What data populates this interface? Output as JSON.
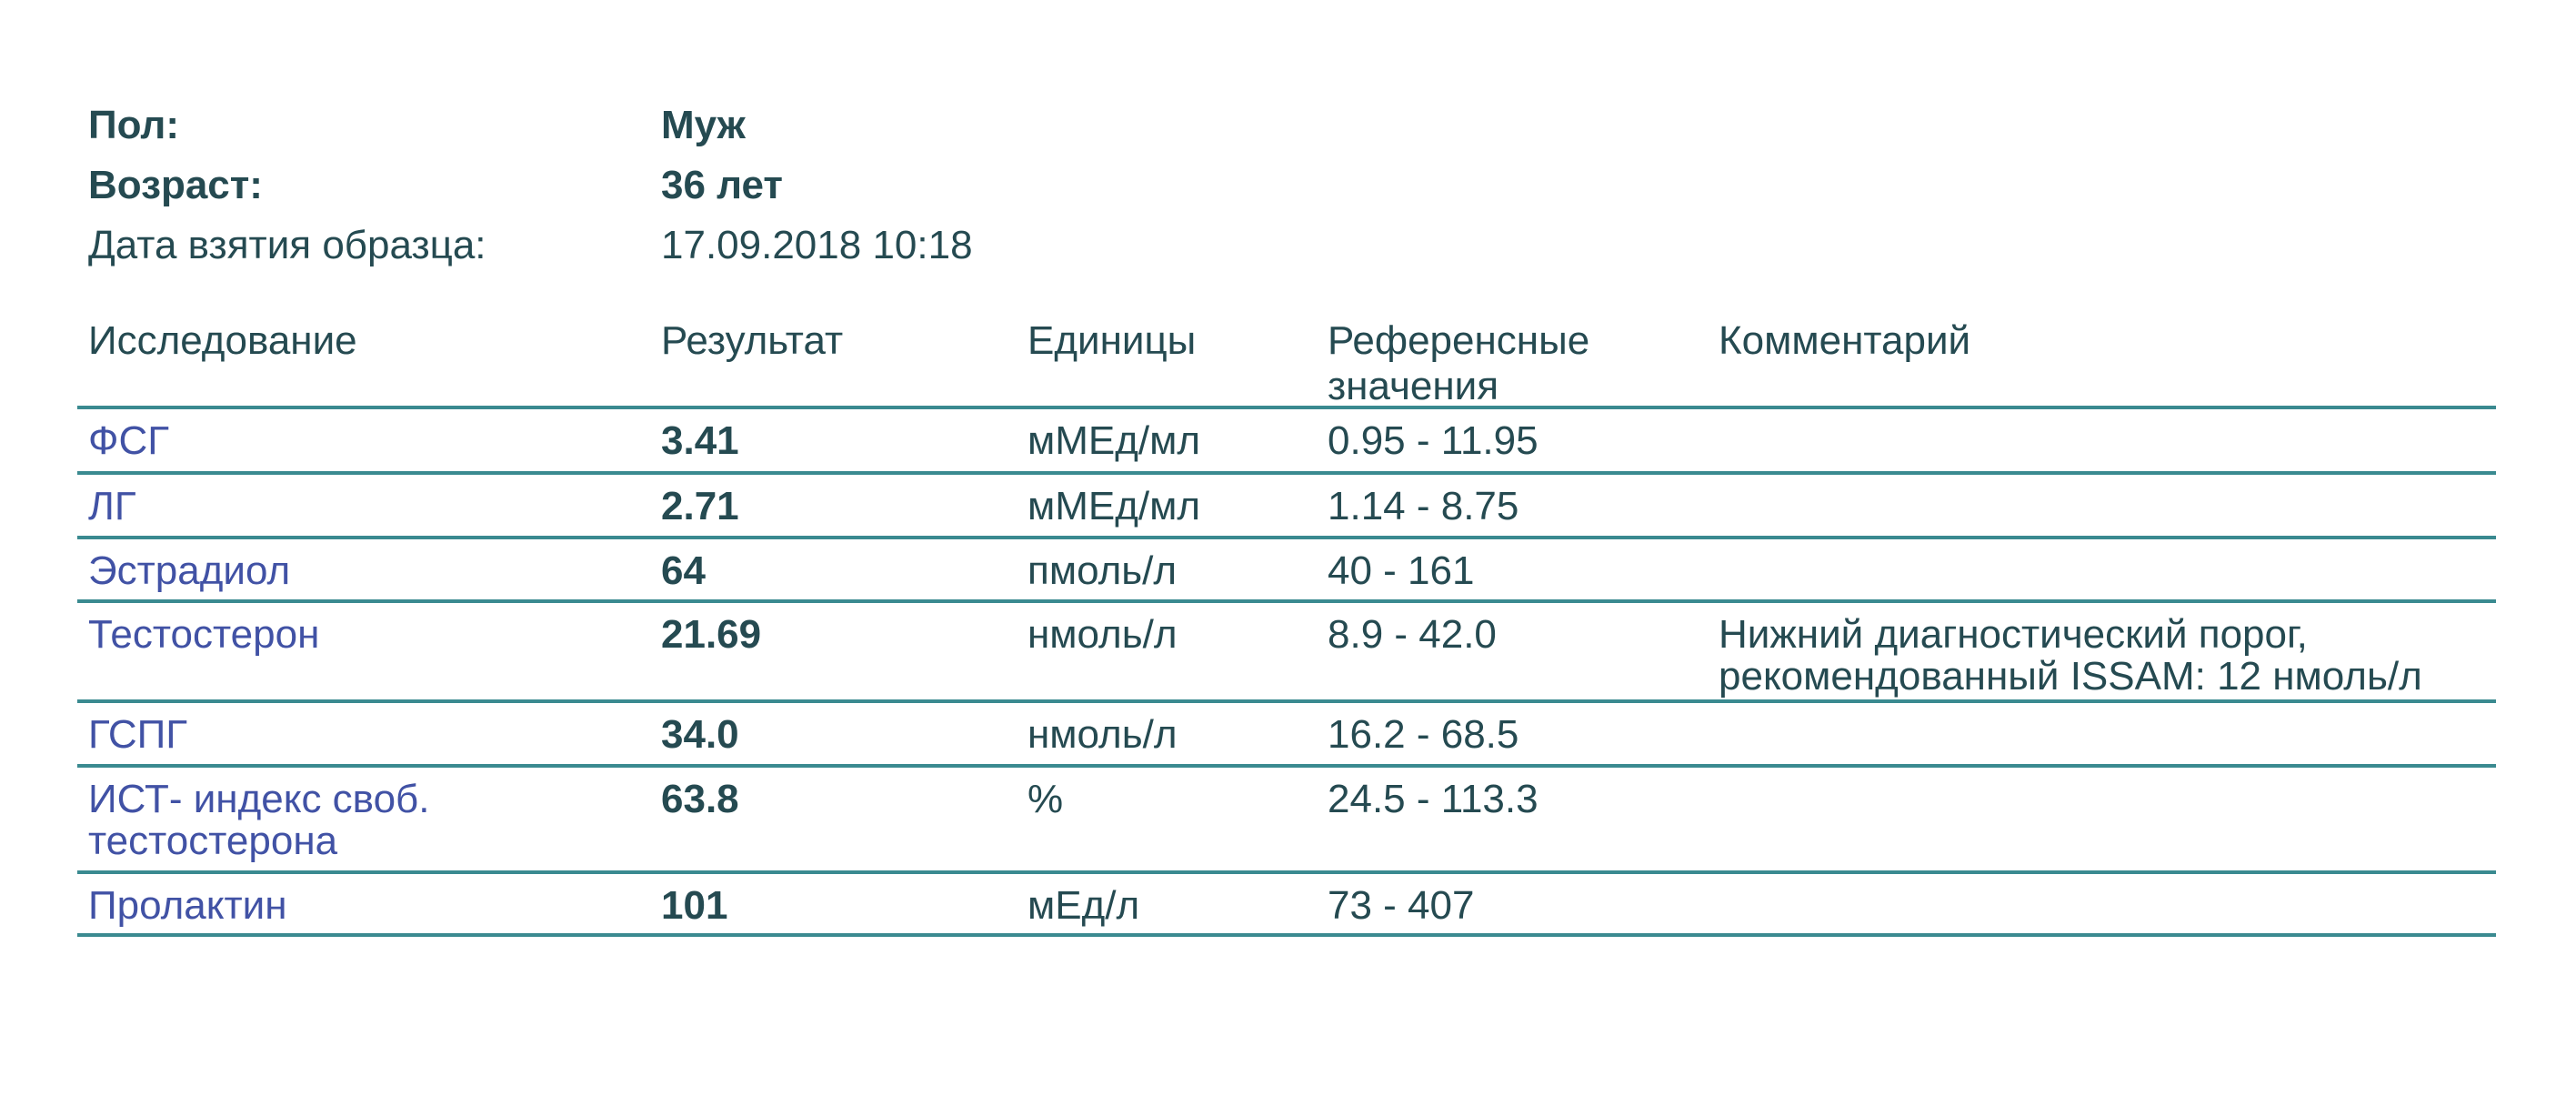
{
  "colors": {
    "text_teal": "#254a51",
    "test_name_blue": "#4152a5",
    "rule_teal": "#3a8a90",
    "background": "#ffffff"
  },
  "patient": {
    "rows": [
      {
        "label": "Пол:",
        "value": "Муж",
        "bold": true
      },
      {
        "label": "Возраст:",
        "value": "36 лет",
        "bold": true
      },
      {
        "label": "Дата взятия образца:",
        "value": "17.09.2018 10:18",
        "bold": false
      }
    ]
  },
  "table": {
    "headers": [
      "Исследование",
      "Результат",
      "Единицы",
      "Референсные значения",
      "Комментарий"
    ],
    "rows": [
      {
        "name": "ФСГ",
        "result": "3.41",
        "units": "мМЕд/мл",
        "reference": "0.95 - 11.95",
        "comment": ""
      },
      {
        "name": "ЛГ",
        "result": "2.71",
        "units": "мМЕд/мл",
        "reference": "1.14 - 8.75",
        "comment": ""
      },
      {
        "name": "Эстрадиол",
        "result": "64",
        "units": "пмоль/л",
        "reference": "40 - 161",
        "comment": ""
      },
      {
        "name": "Тестостерон",
        "result": "21.69",
        "units": "нмоль/л",
        "reference": "8.9 - 42.0",
        "comment": "Нижний диагностический порог, рекомендованный ISSAM: 12 нмоль/л"
      },
      {
        "name": "ГСПГ",
        "result": "34.0",
        "units": "нмоль/л",
        "reference": "16.2 - 68.5",
        "comment": ""
      },
      {
        "name": "ИСТ- индекс своб. тестостерона",
        "result": "63.8",
        "units": "%",
        "reference": "24.5 - 113.3",
        "comment": ""
      },
      {
        "name": "Пролактин",
        "result": "101",
        "units": "мЕд/л",
        "reference": "73 - 407",
        "comment": ""
      }
    ]
  }
}
